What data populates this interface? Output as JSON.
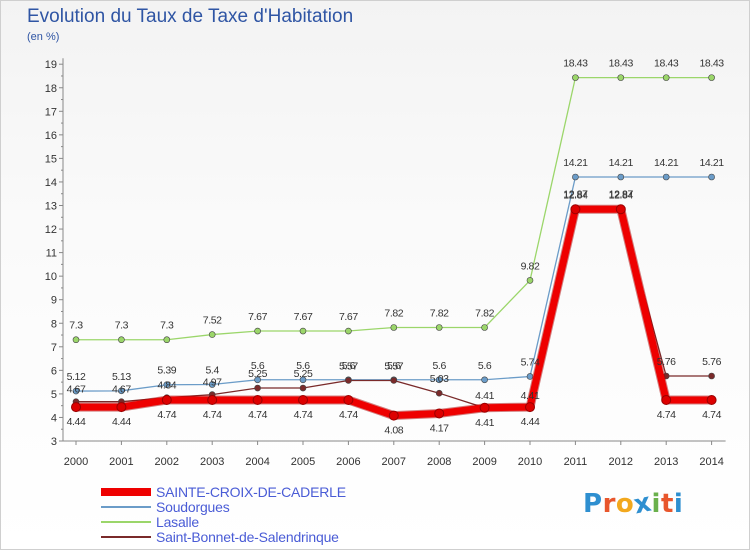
{
  "header": {
    "title": "Evolution du Taux de Taxe d'Habitation",
    "subtitle": "(en %)"
  },
  "logo": {
    "letters": [
      "P",
      "r",
      "o",
      "x",
      "i",
      "t",
      "i"
    ],
    "colors": [
      "#2e8fd0",
      "#e8562c",
      "#f2a81d",
      "#2e8fd0",
      "#6ab04c",
      "#e8562c",
      "#2e8fd0"
    ]
  },
  "chart_data": {
    "type": "line",
    "title": "Evolution du Taux de Taxe d'Habitation",
    "subtitle": "(en %)",
    "xlabel": "",
    "ylabel": "",
    "ylim": [
      3,
      19
    ],
    "yticks": [
      "3",
      "4",
      "5",
      "6",
      "7",
      "8",
      "9",
      "10",
      "11",
      "12",
      "13",
      "14",
      "15",
      "16",
      "17",
      "18",
      "19"
    ],
    "categories": [
      "2000",
      "2001",
      "2002",
      "2003",
      "2004",
      "2005",
      "2006",
      "2007",
      "2008",
      "2009",
      "2010",
      "2011",
      "2012",
      "2013",
      "2014"
    ],
    "grid": false,
    "legend_position": "bottom-left",
    "series": [
      {
        "name": "SAINTE-CROIX-DE-CADERLE",
        "color": "#ee0000",
        "emphasis": true,
        "values": [
          4.44,
          4.44,
          4.74,
          4.74,
          4.74,
          4.74,
          4.74,
          4.08,
          4.17,
          4.41,
          4.44,
          12.84,
          12.84,
          4.74,
          4.74
        ],
        "labels": [
          "4.44",
          "4.44",
          "4.74",
          "4.74",
          "4.74",
          "4.74",
          "4.74",
          "4.08",
          "4.17",
          "4.41",
          "4.44",
          "12.84",
          "12.84",
          "4.74",
          "4.74"
        ]
      },
      {
        "name": "Soudorgues",
        "color": "#6b9cc8",
        "values": [
          5.12,
          5.13,
          5.39,
          5.4,
          5.6,
          5.6,
          5.6,
          5.6,
          5.6,
          5.6,
          5.74,
          14.21,
          14.21,
          14.21,
          14.21
        ],
        "labels": [
          "5.12",
          "5.13",
          "5.39",
          "5.4",
          "5.6",
          "5.6",
          "5.6",
          "5.6",
          "5.6",
          "5.6",
          "5.74",
          "14.21",
          "14.21",
          "14.21",
          "14.21"
        ]
      },
      {
        "name": "Lasalle",
        "color": "#9bd66a",
        "values": [
          7.3,
          7.3,
          7.3,
          7.52,
          7.67,
          7.67,
          7.67,
          7.82,
          7.82,
          7.82,
          9.82,
          18.43,
          18.43,
          18.43,
          18.43
        ],
        "labels": [
          "7.3",
          "7.3",
          "7.3",
          "7.52",
          "7.67",
          "7.67",
          "7.67",
          "7.82",
          "7.82",
          "7.82",
          "9.82",
          "18.43",
          "18.43",
          "18.43",
          "18.43"
        ]
      },
      {
        "name": "Saint-Bonnet-de-Salendrinque",
        "color": "#7a2a2a",
        "values": [
          4.67,
          4.67,
          4.84,
          4.97,
          5.25,
          5.25,
          5.57,
          5.57,
          5.03,
          4.41,
          4.41,
          12.87,
          12.87,
          5.76,
          5.76
        ],
        "labels": [
          "4.67",
          "4.67",
          "4.84",
          "4.97",
          "5.25",
          "5.25",
          "5.57",
          "5.57",
          "5.03",
          "4.41",
          "4.41",
          "12.87",
          "12.87",
          "5.76",
          "5.76"
        ]
      }
    ]
  }
}
